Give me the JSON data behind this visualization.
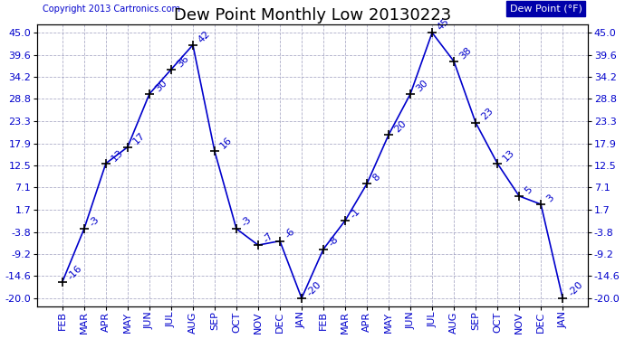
{
  "title": "Dew Point Monthly Low 20130223",
  "copyright": "Copyright 2013 Cartronics.com",
  "legend_label": "Dew Point (°F)",
  "x_labels": [
    "FEB",
    "MAR",
    "APR",
    "MAY",
    "JUN",
    "JUL",
    "AUG",
    "SEP",
    "OCT",
    "NOV",
    "DEC",
    "JAN",
    "FEB",
    "MAR",
    "APR",
    "MAY",
    "JUN",
    "JUL",
    "AUG",
    "SEP",
    "OCT",
    "NOV",
    "DEC",
    "JAN"
  ],
  "y_values": [
    -16,
    -3,
    13,
    17,
    30,
    36,
    42,
    16,
    -3,
    -7,
    -6,
    -20,
    -8,
    -1,
    8,
    20,
    30,
    45,
    38,
    23,
    13,
    5,
    3,
    -20
  ],
  "annotations": [
    "-16",
    "-3",
    "13",
    "17",
    "30",
    "36",
    "42",
    "16",
    "-3",
    "-7",
    "-6",
    "-20",
    "-8",
    "-1",
    "8",
    "20",
    "30",
    "45",
    "38",
    "23",
    "13",
    "5",
    "3",
    "-20"
  ],
  "ylim_min": -22,
  "ylim_max": 47,
  "y_ticks": [
    -20.0,
    -14.6,
    -9.2,
    -3.8,
    1.7,
    7.1,
    12.5,
    17.9,
    23.3,
    28.8,
    34.2,
    39.6,
    45.0
  ],
  "line_color": "#0000cc",
  "marker": "+",
  "marker_size": 7,
  "marker_color": "#000000",
  "grid_color": "#9999bb",
  "bg_color": "#ffffff",
  "title_fontsize": 13,
  "label_fontsize": 8,
  "annotation_fontsize": 8,
  "legend_bg": "#0000aa",
  "legend_text_color": "#ffffff",
  "copyright_fontsize": 7
}
